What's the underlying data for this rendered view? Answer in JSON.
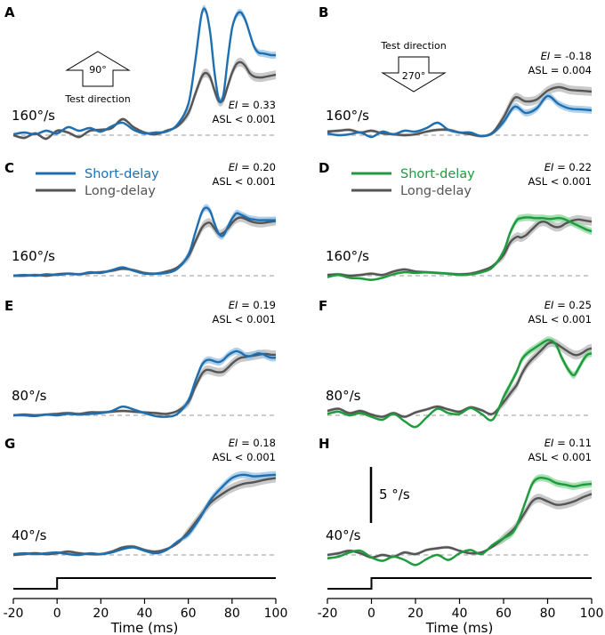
{
  "chart_data": {
    "type": "line",
    "colors": {
      "short_blue": "#1f6fb0",
      "short_green": "#1f9a3c",
      "long": "#555555",
      "long_band": "#bdbdbd",
      "blue_band": "#9cc6e6",
      "green_band": "#8fd9a0",
      "baseline": "#999999"
    },
    "x_axis": {
      "label": "Time (ms)",
      "range": [
        -20,
        100
      ],
      "ticks": [
        "-20",
        "0",
        "20",
        "40",
        "60",
        "80",
        "100"
      ]
    },
    "scale_bar_label": "5 °/s",
    "legend": {
      "short": "Short-delay",
      "long": "Long-delay"
    },
    "arrows": {
      "up": {
        "angle": "90°",
        "caption": "Test direction"
      },
      "down": {
        "angle": "270°",
        "caption": "Test direction"
      }
    },
    "panels": [
      {
        "id": "A",
        "speed": "160°/s",
        "ei_label": "EI",
        "ei_value": " = 0.33",
        "asl": "ASL < 0.001",
        "short_color": "blue",
        "t": [
          -20,
          -15,
          -10,
          -5,
          0,
          5,
          10,
          15,
          20,
          25,
          30,
          35,
          40,
          45,
          50,
          55,
          60,
          63,
          66,
          68,
          70,
          72,
          74,
          76,
          78,
          80,
          82,
          84,
          86,
          88,
          90,
          92,
          94,
          96,
          98,
          100
        ],
        "short": [
          0.1,
          0.3,
          0.1,
          0.5,
          0.2,
          0.9,
          0.5,
          0.8,
          0.4,
          1.0,
          1.4,
          0.6,
          0.2,
          0.3,
          0.4,
          1.2,
          3.5,
          8.0,
          13.5,
          14.0,
          11.5,
          7.0,
          4.0,
          4.5,
          8.5,
          12.0,
          13.5,
          13.8,
          13.0,
          11.5,
          10.0,
          9.3,
          9.2,
          9.1,
          9.0,
          9.0
        ],
        "long": [
          0.0,
          -0.3,
          0.2,
          -0.4,
          0.5,
          0.3,
          -0.2,
          0.5,
          0.6,
          0.8,
          1.8,
          0.9,
          0.3,
          0.1,
          0.5,
          1.0,
          2.5,
          4.5,
          6.5,
          7.0,
          6.5,
          5.0,
          3.8,
          4.0,
          5.5,
          7.0,
          8.0,
          8.2,
          7.8,
          7.0,
          6.6,
          6.5,
          6.5,
          6.6,
          6.7,
          6.8
        ]
      },
      {
        "id": "B",
        "speed": "160°/s",
        "ei_label": "EI",
        "ei_value": " = -0.18",
        "asl": "ASL = 0.004",
        "short_color": "blue",
        "t": [
          -20,
          -15,
          -10,
          -5,
          0,
          5,
          10,
          15,
          20,
          25,
          30,
          35,
          40,
          45,
          50,
          55,
          60,
          65,
          70,
          75,
          80,
          85,
          90,
          95,
          100
        ],
        "short": [
          0.2,
          0.0,
          0.1,
          0.3,
          -0.2,
          0.4,
          0.1,
          0.5,
          0.4,
          0.8,
          1.4,
          0.6,
          0.3,
          0.3,
          -0.1,
          0.2,
          1.5,
          3.2,
          2.5,
          3.0,
          4.4,
          3.5,
          3.0,
          2.9,
          2.8
        ],
        "long": [
          0.4,
          0.5,
          0.6,
          0.3,
          0.5,
          0.2,
          0.1,
          0.0,
          0.1,
          0.4,
          0.6,
          0.6,
          0.3,
          0.1,
          -0.1,
          0.3,
          2.0,
          4.2,
          3.8,
          4.0,
          5.0,
          5.4,
          5.1,
          5.0,
          4.9
        ]
      },
      {
        "id": "C",
        "speed": "160°/s",
        "ei_label": "EI",
        "ei_value": " = 0.20",
        "asl": "ASL < 0.001",
        "short_color": "blue",
        "t": [
          -20,
          -15,
          -10,
          -5,
          0,
          5,
          10,
          15,
          20,
          25,
          30,
          35,
          40,
          45,
          50,
          55,
          60,
          63,
          66,
          68,
          70,
          72,
          74,
          76,
          78,
          80,
          82,
          84,
          86,
          88,
          90,
          92,
          94,
          96,
          98,
          100
        ],
        "short": [
          0.0,
          0.1,
          0.0,
          0.2,
          0.1,
          0.3,
          0.2,
          0.5,
          0.4,
          0.8,
          1.2,
          0.7,
          0.3,
          0.3,
          0.4,
          1.0,
          3.0,
          6.0,
          9.0,
          9.8,
          9.3,
          7.5,
          6.0,
          5.8,
          7.0,
          8.2,
          9.0,
          8.8,
          8.5,
          8.2,
          8.1,
          8.0,
          8.0,
          8.0,
          8.0,
          8.0
        ],
        "long": [
          0.0,
          0.0,
          0.1,
          0.0,
          0.2,
          0.3,
          0.2,
          0.4,
          0.5,
          0.7,
          1.0,
          0.8,
          0.4,
          0.3,
          0.6,
          1.2,
          2.8,
          4.8,
          6.8,
          7.5,
          7.6,
          6.8,
          6.0,
          6.2,
          6.8,
          7.6,
          8.2,
          8.4,
          8.2,
          7.9,
          7.7,
          7.6,
          7.6,
          7.7,
          7.8,
          7.9
        ]
      },
      {
        "id": "D",
        "speed": "160°/s",
        "ei_label": "EI",
        "ei_value": " = 0.22",
        "asl": "ASL < 0.001",
        "short_color": "green",
        "t": [
          -20,
          -15,
          -10,
          -5,
          0,
          5,
          10,
          15,
          20,
          25,
          30,
          35,
          40,
          45,
          50,
          55,
          60,
          63,
          66,
          68,
          70,
          72,
          74,
          76,
          78,
          80,
          82,
          84,
          86,
          88,
          90,
          92,
          94,
          96,
          98,
          100
        ],
        "short": [
          -0.2,
          0.1,
          -0.3,
          -0.4,
          -0.6,
          -0.3,
          0.2,
          0.5,
          0.4,
          0.5,
          0.4,
          0.3,
          0.1,
          0.2,
          0.5,
          1.2,
          3.5,
          6.2,
          8.0,
          8.3,
          8.4,
          8.4,
          8.3,
          8.3,
          8.3,
          8.2,
          8.2,
          8.3,
          8.3,
          8.1,
          7.8,
          7.5,
          7.2,
          6.9,
          6.6,
          6.4
        ],
        "long": [
          0.1,
          0.2,
          0.0,
          0.1,
          0.3,
          0.1,
          0.6,
          0.9,
          0.6,
          0.5,
          0.4,
          0.3,
          0.2,
          0.3,
          0.7,
          1.4,
          3.0,
          4.8,
          5.6,
          5.5,
          5.8,
          6.4,
          7.0,
          7.6,
          7.8,
          7.6,
          7.2,
          7.0,
          7.1,
          7.5,
          7.8,
          8.0,
          8.1,
          8.0,
          7.9,
          7.8
        ]
      },
      {
        "id": "E",
        "speed": "80°/s",
        "ei_label": "EI",
        "ei_value": " = 0.19",
        "asl": "ASL < 0.001",
        "short_color": "blue",
        "t": [
          -20,
          -15,
          -10,
          -5,
          0,
          5,
          10,
          15,
          20,
          25,
          30,
          35,
          40,
          45,
          50,
          55,
          60,
          63,
          66,
          68,
          70,
          72,
          74,
          76,
          78,
          80,
          82,
          84,
          86,
          88,
          90,
          92,
          94,
          96,
          98,
          100
        ],
        "short": [
          0.0,
          0.0,
          -0.1,
          0.1,
          0.0,
          0.2,
          0.1,
          0.2,
          0.3,
          0.6,
          1.2,
          0.8,
          0.3,
          -0.1,
          -0.2,
          0.2,
          2.0,
          4.5,
          6.8,
          7.5,
          7.6,
          7.4,
          7.3,
          7.6,
          8.2,
          8.6,
          8.8,
          8.6,
          8.2,
          8.1,
          8.3,
          8.5,
          8.4,
          8.1,
          7.9,
          7.9
        ],
        "long": [
          0.0,
          0.1,
          0.0,
          0.1,
          0.2,
          0.3,
          0.2,
          0.4,
          0.4,
          0.5,
          0.6,
          0.5,
          0.4,
          0.3,
          0.2,
          0.6,
          1.8,
          3.8,
          5.6,
          6.2,
          6.2,
          6.0,
          5.9,
          6.0,
          6.5,
          7.1,
          7.6,
          7.9,
          8.0,
          8.1,
          8.2,
          8.3,
          8.4,
          8.4,
          8.3,
          8.3
        ]
      },
      {
        "id": "F",
        "speed": "80°/s",
        "ei_label": "EI",
        "ei_value": " = 0.25",
        "asl": "ASL < 0.001",
        "short_color": "green",
        "t": [
          -20,
          -15,
          -10,
          -5,
          0,
          5,
          10,
          15,
          20,
          25,
          30,
          35,
          40,
          45,
          50,
          55,
          60,
          63,
          66,
          68,
          70,
          72,
          74,
          76,
          78,
          80,
          82,
          84,
          86,
          88,
          90,
          92,
          94,
          96,
          98,
          100
        ],
        "short": [
          0.2,
          0.5,
          0.0,
          0.3,
          -0.2,
          -0.6,
          0.2,
          -0.8,
          -1.6,
          -0.3,
          0.9,
          0.3,
          0.2,
          1.0,
          0.2,
          -0.6,
          2.5,
          4.2,
          6.0,
          7.5,
          8.3,
          8.8,
          9.2,
          9.6,
          10.0,
          10.3,
          10.2,
          9.6,
          8.2,
          7.0,
          6.0,
          5.5,
          6.4,
          7.5,
          8.3,
          8.5
        ],
        "long": [
          0.6,
          0.9,
          0.3,
          0.6,
          0.1,
          -0.2,
          0.3,
          -0.2,
          0.4,
          0.8,
          1.2,
          0.8,
          0.5,
          1.1,
          0.7,
          0.2,
          1.8,
          3.0,
          4.2,
          5.5,
          6.6,
          7.4,
          8.0,
          8.6,
          9.2,
          9.8,
          10.0,
          9.8,
          9.4,
          9.0,
          8.6,
          8.3,
          8.3,
          8.6,
          9.0,
          9.2
        ]
      },
      {
        "id": "G",
        "speed": "40°/s",
        "ei_label": "EI",
        "ei_value": " = 0.18",
        "asl": "ASL < 0.001",
        "short_color": "blue",
        "t": [
          -20,
          -15,
          -10,
          -5,
          0,
          5,
          10,
          15,
          20,
          25,
          30,
          35,
          40,
          45,
          50,
          55,
          60,
          65,
          70,
          75,
          80,
          85,
          90,
          95,
          100
        ],
        "short": [
          0.1,
          0.2,
          0.1,
          0.2,
          0.3,
          0.1,
          0.0,
          0.2,
          0.1,
          0.3,
          0.7,
          0.9,
          0.5,
          0.2,
          0.6,
          1.6,
          2.5,
          4.3,
          6.5,
          8.0,
          9.2,
          9.6,
          9.4,
          9.5,
          9.6
        ],
        "long": [
          0.0,
          0.1,
          0.2,
          0.1,
          0.2,
          0.4,
          0.2,
          0.1,
          0.1,
          0.4,
          0.9,
          1.0,
          0.6,
          0.4,
          0.7,
          1.4,
          2.8,
          4.5,
          6.2,
          7.2,
          8.0,
          8.5,
          8.7,
          9.0,
          9.2
        ]
      },
      {
        "id": "H",
        "speed": "40°/s",
        "ei_label": "EI",
        "ei_value": " = 0.11",
        "asl": "ASL < 0.001",
        "short_color": "green",
        "t": [
          -20,
          -15,
          -10,
          -5,
          0,
          5,
          10,
          15,
          20,
          25,
          30,
          35,
          40,
          45,
          50,
          55,
          60,
          65,
          70,
          73,
          76,
          80,
          84,
          88,
          92,
          96,
          100
        ],
        "short": [
          -0.4,
          -0.2,
          0.3,
          0.5,
          -0.3,
          -0.7,
          -0.2,
          -0.6,
          -1.2,
          -0.5,
          0.0,
          -0.6,
          0.2,
          0.6,
          0.1,
          1.2,
          2.0,
          3.0,
          6.4,
          8.5,
          9.2,
          9.1,
          8.6,
          8.4,
          8.2,
          8.4,
          8.5
        ],
        "long": [
          0.0,
          0.2,
          0.5,
          0.2,
          -0.3,
          0.0,
          -0.2,
          0.3,
          0.1,
          0.6,
          0.8,
          0.9,
          0.5,
          0.2,
          0.3,
          1.0,
          2.0,
          3.2,
          5.2,
          6.4,
          6.8,
          6.4,
          6.0,
          6.1,
          6.4,
          6.9,
          7.3
        ]
      }
    ]
  }
}
